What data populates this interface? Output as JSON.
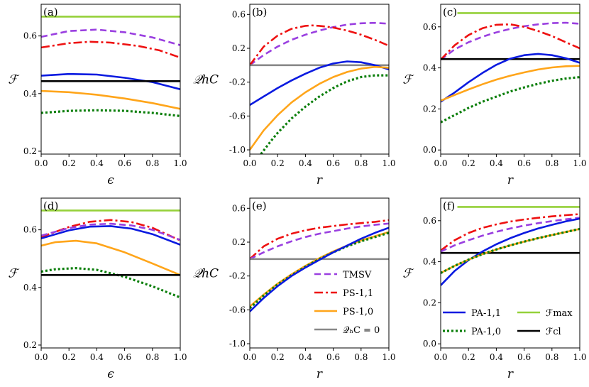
{
  "styles": {
    "TMSV": {
      "color": "#9a3fe0",
      "dash": "9,5"
    },
    "PS11": {
      "color": "#ee1111",
      "dash": "12,4,3,4"
    },
    "PS10": {
      "color": "#ffa51a",
      "dash": ""
    },
    "PA11": {
      "color": "#0a1ae0",
      "dash": ""
    },
    "PA10": {
      "color": "#0c7f0c",
      "dash": "3,3"
    },
    "Fmax": {
      "color": "#95d13a",
      "dash": ""
    },
    "Fcl": {
      "color": "#000000",
      "dash": ""
    },
    "Q0": {
      "color": "#888888",
      "dash": ""
    }
  },
  "legend_e": [
    {
      "key": "TMSV",
      "label": "TMSV"
    },
    {
      "key": "PS11",
      "label": "PS-1,1"
    },
    {
      "key": "PS10",
      "label": "PS-1,0"
    },
    {
      "key": "Q0",
      "label": "𝒬ₕC = 0"
    }
  ],
  "legend_f": [
    {
      "key": "PA11",
      "label": "PA-1,1"
    },
    {
      "key": "Fmax",
      "label": "ℱmax"
    },
    {
      "key": "PA10",
      "label": "PA-1,0"
    },
    {
      "key": "Fcl",
      "label": "ℱcl"
    }
  ],
  "chart_data": [
    {
      "panel": "(a)",
      "type": "line",
      "xlabel": "ϵ",
      "ylabel": "ℱ",
      "xlim": [
        0,
        1
      ],
      "ylim": [
        0.19,
        0.71
      ],
      "xticks": [
        "0.0",
        "0.2",
        "0.4",
        "0.6",
        "0.8",
        "1.0"
      ],
      "xtick_values": [
        0,
        0.2,
        0.4,
        0.6,
        0.8,
        1.0
      ],
      "yticks": [
        "0.2",
        "0.4",
        "0.6"
      ],
      "ytick_values": [
        0.2,
        0.4,
        0.6
      ],
      "series": [
        {
          "key": "Fmax",
          "x": [
            0,
            1
          ],
          "y": [
            0.667,
            0.667
          ]
        },
        {
          "key": "TMSV",
          "x": [
            0,
            0.2,
            0.4,
            0.6,
            0.8,
            1.0
          ],
          "y": [
            0.597,
            0.617,
            0.622,
            0.613,
            0.595,
            0.568
          ]
        },
        {
          "key": "PS11",
          "x": [
            0,
            0.2,
            0.35,
            0.5,
            0.7,
            0.85,
            1.0
          ],
          "y": [
            0.56,
            0.575,
            0.58,
            0.577,
            0.565,
            0.55,
            0.525
          ]
        },
        {
          "key": "PA11",
          "x": [
            0,
            0.2,
            0.4,
            0.6,
            0.8,
            1.0
          ],
          "y": [
            0.462,
            0.468,
            0.466,
            0.455,
            0.44,
            0.415
          ]
        },
        {
          "key": "Fcl",
          "x": [
            0,
            1
          ],
          "y": [
            0.443,
            0.443
          ]
        },
        {
          "key": "PS10",
          "x": [
            0,
            0.2,
            0.4,
            0.6,
            0.8,
            1.0
          ],
          "y": [
            0.409,
            0.405,
            0.396,
            0.383,
            0.367,
            0.347
          ]
        },
        {
          "key": "PA10",
          "x": [
            0,
            0.2,
            0.4,
            0.6,
            0.8,
            1.0
          ],
          "y": [
            0.333,
            0.34,
            0.342,
            0.34,
            0.333,
            0.322
          ]
        }
      ]
    },
    {
      "panel": "(b)",
      "type": "line",
      "xlabel": "r",
      "ylabel": "𝒬hC",
      "xlim": [
        0,
        1
      ],
      "ylim": [
        -1.05,
        0.72
      ],
      "xticks": [
        "0.0",
        "0.2",
        "0.4",
        "0.6",
        "0.8",
        "1.0"
      ],
      "xtick_values": [
        0,
        0.2,
        0.4,
        0.6,
        0.8,
        1.0
      ],
      "yticks": [
        "-1.0",
        "-0.6",
        "-0.2",
        "0.2",
        "0.6"
      ],
      "ytick_values": [
        -1.0,
        -0.6,
        -0.2,
        0.2,
        0.6
      ],
      "series": [
        {
          "key": "TMSV",
          "x": [
            0,
            0.1,
            0.2,
            0.3,
            0.4,
            0.5,
            0.6,
            0.7,
            0.8,
            0.9,
            1.0
          ],
          "y": [
            0.0,
            0.12,
            0.22,
            0.3,
            0.36,
            0.41,
            0.45,
            0.48,
            0.495,
            0.5,
            0.49
          ]
        },
        {
          "key": "PS11",
          "x": [
            0,
            0.1,
            0.2,
            0.3,
            0.4,
            0.45,
            0.5,
            0.6,
            0.7,
            0.8,
            0.9,
            1.0
          ],
          "y": [
            0.0,
            0.22,
            0.35,
            0.43,
            0.465,
            0.47,
            0.465,
            0.445,
            0.41,
            0.36,
            0.3,
            0.23
          ]
        },
        {
          "key": "Q0",
          "x": [
            0,
            1
          ],
          "y": [
            0.0,
            0.0
          ]
        },
        {
          "key": "PA11",
          "x": [
            0,
            0.1,
            0.2,
            0.3,
            0.4,
            0.5,
            0.6,
            0.7,
            0.8,
            0.9,
            1.0
          ],
          "y": [
            -0.47,
            -0.37,
            -0.27,
            -0.18,
            -0.1,
            -0.03,
            0.02,
            0.045,
            0.035,
            0.0,
            -0.05
          ]
        },
        {
          "key": "PS10",
          "x": [
            0,
            0.1,
            0.2,
            0.3,
            0.4,
            0.5,
            0.6,
            0.7,
            0.8,
            0.9,
            1.0
          ],
          "y": [
            -1.0,
            -0.77,
            -0.59,
            -0.44,
            -0.32,
            -0.22,
            -0.14,
            -0.08,
            -0.04,
            -0.02,
            -0.03
          ]
        },
        {
          "key": "PA10",
          "x": [
            0.08,
            0.15,
            0.2,
            0.3,
            0.4,
            0.5,
            0.6,
            0.7,
            0.8,
            0.9,
            1.0
          ],
          "y": [
            -1.05,
            -0.9,
            -0.8,
            -0.63,
            -0.49,
            -0.37,
            -0.27,
            -0.19,
            -0.14,
            -0.12,
            -0.12
          ]
        }
      ]
    },
    {
      "panel": "(c)",
      "type": "line",
      "xlabel": "r",
      "ylabel": "ℱ",
      "xlim": [
        0,
        1
      ],
      "ylim": [
        -0.02,
        0.71
      ],
      "xticks": [
        "0.0",
        "0.2",
        "0.4",
        "0.6",
        "0.8",
        "1.0"
      ],
      "xtick_values": [
        0,
        0.2,
        0.4,
        0.6,
        0.8,
        1.0
      ],
      "yticks": [
        "0.0",
        "0.2",
        "0.4",
        "0.6"
      ],
      "ytick_values": [
        0,
        0.2,
        0.4,
        0.6
      ],
      "series": [
        {
          "key": "Fmax",
          "x": [
            0.12,
            1
          ],
          "y": [
            0.667,
            0.667
          ]
        },
        {
          "key": "TMSV",
          "x": [
            0,
            0.1,
            0.2,
            0.3,
            0.4,
            0.5,
            0.6,
            0.7,
            0.8,
            0.9,
            1.0
          ],
          "y": [
            0.44,
            0.49,
            0.525,
            0.552,
            0.573,
            0.59,
            0.603,
            0.612,
            0.618,
            0.62,
            0.615
          ]
        },
        {
          "key": "PS11",
          "x": [
            0,
            0.1,
            0.2,
            0.3,
            0.4,
            0.5,
            0.6,
            0.7,
            0.8,
            0.9,
            1.0
          ],
          "y": [
            0.44,
            0.51,
            0.56,
            0.593,
            0.61,
            0.612,
            0.6,
            0.58,
            0.555,
            0.525,
            0.495
          ]
        },
        {
          "key": "Fcl",
          "x": [
            0,
            1
          ],
          "y": [
            0.443,
            0.443
          ]
        },
        {
          "key": "PA11",
          "x": [
            0,
            0.1,
            0.2,
            0.3,
            0.4,
            0.5,
            0.6,
            0.7,
            0.8,
            0.9,
            1.0
          ],
          "y": [
            0.235,
            0.28,
            0.33,
            0.375,
            0.415,
            0.445,
            0.462,
            0.468,
            0.462,
            0.447,
            0.425
          ]
        },
        {
          "key": "PS10",
          "x": [
            0,
            0.1,
            0.2,
            0.3,
            0.4,
            0.5,
            0.6,
            0.7,
            0.8,
            0.9,
            1.0
          ],
          "y": [
            0.24,
            0.268,
            0.295,
            0.32,
            0.343,
            0.362,
            0.378,
            0.392,
            0.402,
            0.408,
            0.41
          ]
        },
        {
          "key": "PA10",
          "x": [
            0,
            0.1,
            0.2,
            0.3,
            0.4,
            0.5,
            0.6,
            0.7,
            0.8,
            0.9,
            1.0
          ],
          "y": [
            0.135,
            0.17,
            0.205,
            0.235,
            0.26,
            0.285,
            0.305,
            0.322,
            0.337,
            0.348,
            0.355
          ]
        }
      ]
    },
    {
      "panel": "(d)",
      "type": "line",
      "xlabel": "ϵ",
      "ylabel": "ℱ",
      "xlim": [
        0,
        1
      ],
      "ylim": [
        0.19,
        0.71
      ],
      "xticks": [
        "0.0",
        "0.2",
        "0.4",
        "0.6",
        "0.8",
        "1.0"
      ],
      "xtick_values": [
        0,
        0.2,
        0.4,
        0.6,
        0.8,
        1.0
      ],
      "yticks": [
        "0.2",
        "0.4",
        "0.6"
      ],
      "ytick_values": [
        0.2,
        0.4,
        0.6
      ],
      "series": [
        {
          "key": "Fmax",
          "x": [
            0,
            1
          ],
          "y": [
            0.667,
            0.667
          ]
        },
        {
          "key": "PS11",
          "x": [
            0,
            0.2,
            0.35,
            0.5,
            0.65,
            0.8,
            1.0
          ],
          "y": [
            0.575,
            0.61,
            0.628,
            0.634,
            0.627,
            0.607,
            0.563
          ]
        },
        {
          "key": "TMSV",
          "x": [
            0,
            0.2,
            0.35,
            0.5,
            0.65,
            0.8,
            1.0
          ],
          "y": [
            0.58,
            0.606,
            0.618,
            0.621,
            0.615,
            0.6,
            0.565
          ]
        },
        {
          "key": "PA11",
          "x": [
            0,
            0.2,
            0.35,
            0.5,
            0.65,
            0.8,
            1.0
          ],
          "y": [
            0.57,
            0.598,
            0.611,
            0.613,
            0.604,
            0.585,
            0.548
          ]
        },
        {
          "key": "PS10",
          "x": [
            0,
            0.1,
            0.25,
            0.4,
            0.6,
            0.8,
            1.0
          ],
          "y": [
            0.545,
            0.557,
            0.562,
            0.553,
            0.522,
            0.483,
            0.443
          ]
        },
        {
          "key": "PA10",
          "x": [
            0,
            0.1,
            0.25,
            0.4,
            0.6,
            0.8,
            1.0
          ],
          "y": [
            0.455,
            0.463,
            0.467,
            0.461,
            0.437,
            0.404,
            0.365
          ]
        },
        {
          "key": "Fcl",
          "x": [
            0,
            1
          ],
          "y": [
            0.443,
            0.443
          ]
        }
      ]
    },
    {
      "panel": "(e)",
      "type": "line",
      "xlabel": "r",
      "ylabel": "𝒬hC",
      "xlim": [
        0,
        1
      ],
      "ylim": [
        -1.05,
        0.72
      ],
      "xticks": [
        "0.0",
        "0.2",
        "0.4",
        "0.6",
        "0.8",
        "1.0"
      ],
      "xtick_values": [
        0,
        0.2,
        0.4,
        0.6,
        0.8,
        1.0
      ],
      "yticks": [
        "-1.0",
        "-0.6",
        "-0.2",
        "0.2",
        "0.6"
      ],
      "ytick_values": [
        -1.0,
        -0.6,
        -0.2,
        0.2,
        0.6
      ],
      "series": [
        {
          "key": "PS11",
          "x": [
            0,
            0.1,
            0.2,
            0.3,
            0.4,
            0.5,
            0.6,
            0.7,
            0.8,
            0.9,
            1.0
          ],
          "y": [
            0.0,
            0.15,
            0.24,
            0.3,
            0.34,
            0.37,
            0.39,
            0.41,
            0.425,
            0.44,
            0.46
          ]
        },
        {
          "key": "TMSV",
          "x": [
            0,
            0.1,
            0.2,
            0.3,
            0.4,
            0.5,
            0.6,
            0.7,
            0.8,
            0.9,
            1.0
          ],
          "y": [
            0.0,
            0.08,
            0.15,
            0.21,
            0.26,
            0.3,
            0.33,
            0.36,
            0.385,
            0.405,
            0.42
          ]
        },
        {
          "key": "Q0",
          "x": [
            0,
            1
          ],
          "y": [
            0.0,
            0.0
          ]
        },
        {
          "key": "PS10",
          "x": [
            0,
            0.1,
            0.2,
            0.3,
            0.4,
            0.5,
            0.6,
            0.7,
            0.8,
            0.9,
            1.0
          ],
          "y": [
            -0.56,
            -0.42,
            -0.29,
            -0.18,
            -0.08,
            0.01,
            0.09,
            0.16,
            0.22,
            0.27,
            0.32
          ]
        },
        {
          "key": "PA10",
          "x": [
            0,
            0.1,
            0.2,
            0.3,
            0.4,
            0.5,
            0.6,
            0.7,
            0.8,
            0.9,
            1.0
          ],
          "y": [
            -0.58,
            -0.43,
            -0.3,
            -0.19,
            -0.09,
            0.0,
            0.08,
            0.15,
            0.21,
            0.26,
            0.31
          ]
        },
        {
          "key": "PA11",
          "x": [
            0,
            0.1,
            0.2,
            0.3,
            0.4,
            0.5,
            0.6,
            0.7,
            0.8,
            0.9,
            1.0
          ],
          "y": [
            -0.62,
            -0.46,
            -0.32,
            -0.2,
            -0.1,
            -0.01,
            0.08,
            0.16,
            0.24,
            0.31,
            0.37
          ]
        }
      ]
    },
    {
      "panel": "(f)",
      "type": "line",
      "xlabel": "r",
      "ylabel": "ℱ",
      "xlim": [
        0,
        1
      ],
      "ylim": [
        -0.02,
        0.71
      ],
      "xticks": [
        "0.0",
        "0.2",
        "0.4",
        "0.6",
        "0.8",
        "1.0"
      ],
      "xtick_values": [
        0,
        0.2,
        0.4,
        0.6,
        0.8,
        1.0
      ],
      "yticks": [
        "0.0",
        "0.2",
        "0.4",
        "0.6"
      ],
      "ytick_values": [
        0,
        0.2,
        0.4,
        0.6
      ],
      "series": [
        {
          "key": "Fmax",
          "x": [
            0.12,
            1
          ],
          "y": [
            0.667,
            0.667
          ]
        },
        {
          "key": "PS11",
          "x": [
            0,
            0.1,
            0.2,
            0.3,
            0.4,
            0.5,
            0.6,
            0.7,
            0.8,
            0.9,
            1.0
          ],
          "y": [
            0.455,
            0.505,
            0.54,
            0.565,
            0.582,
            0.596,
            0.606,
            0.614,
            0.621,
            0.627,
            0.632
          ]
        },
        {
          "key": "TMSV",
          "x": [
            0,
            0.1,
            0.2,
            0.3,
            0.4,
            0.5,
            0.6,
            0.7,
            0.8,
            0.9,
            1.0
          ],
          "y": [
            0.45,
            0.48,
            0.505,
            0.527,
            0.546,
            0.562,
            0.576,
            0.588,
            0.598,
            0.607,
            0.615
          ]
        },
        {
          "key": "Fcl",
          "x": [
            0,
            1
          ],
          "y": [
            0.443,
            0.443
          ]
        },
        {
          "key": "PA11",
          "x": [
            0,
            0.1,
            0.2,
            0.3,
            0.4,
            0.5,
            0.6,
            0.7,
            0.8,
            0.9,
            1.0
          ],
          "y": [
            0.285,
            0.355,
            0.408,
            0.45,
            0.485,
            0.515,
            0.54,
            0.562,
            0.58,
            0.597,
            0.61
          ]
        },
        {
          "key": "PS10",
          "x": [
            0,
            0.1,
            0.2,
            0.3,
            0.4,
            0.5,
            0.6,
            0.7,
            0.8,
            0.9,
            1.0
          ],
          "y": [
            0.345,
            0.38,
            0.41,
            0.437,
            0.46,
            0.48,
            0.498,
            0.515,
            0.53,
            0.545,
            0.56
          ]
        },
        {
          "key": "PA10",
          "x": [
            0,
            0.1,
            0.2,
            0.3,
            0.4,
            0.5,
            0.6,
            0.7,
            0.8,
            0.9,
            1.0
          ],
          "y": [
            0.345,
            0.38,
            0.41,
            0.437,
            0.46,
            0.48,
            0.498,
            0.515,
            0.53,
            0.545,
            0.56
          ]
        }
      ]
    }
  ]
}
